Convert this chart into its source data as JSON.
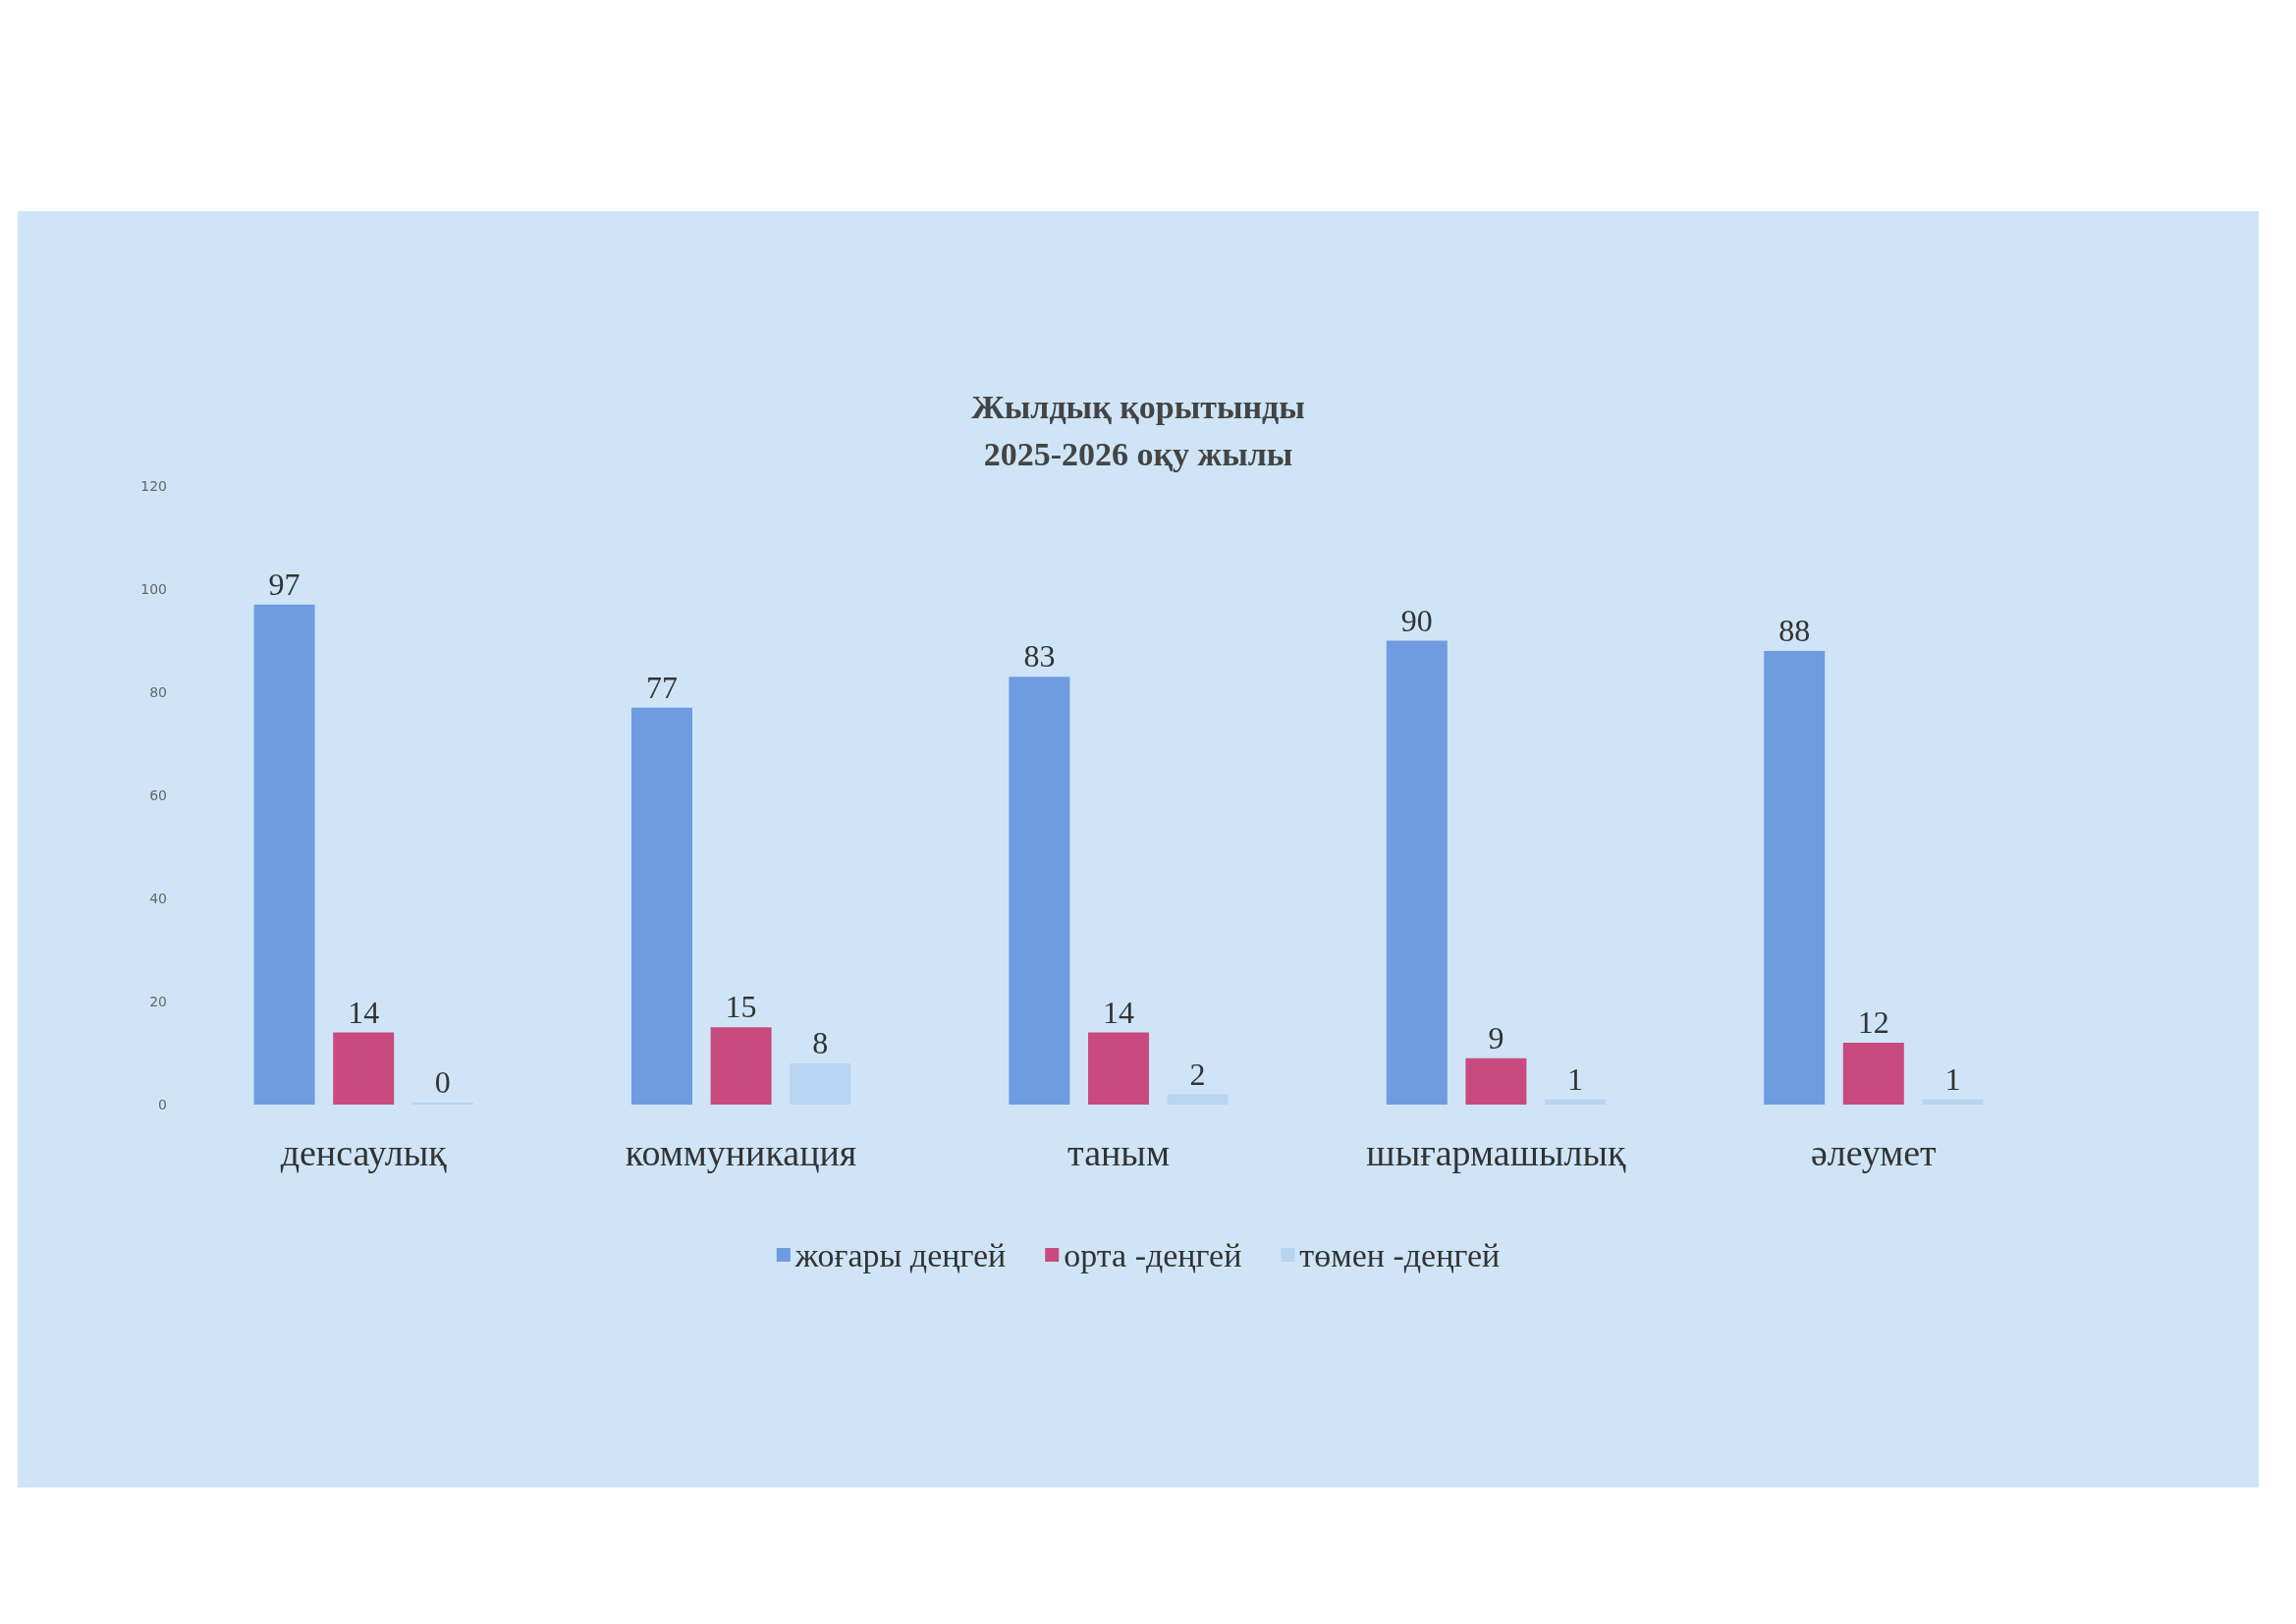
{
  "chart_data": {
    "type": "bar",
    "title": "Жылдық қорытынды\n2025-2026 оқу жылы",
    "categories": [
      "денсаулық",
      "коммуникация",
      "таным",
      "шығармашылық",
      "әлеумет"
    ],
    "series": [
      {
        "name": "жоғары деңгей",
        "color": "#6f9be0",
        "values": [
          97,
          77,
          83,
          90,
          88
        ]
      },
      {
        "name": "орта -деңгей",
        "color": "#c94a7e",
        "values": [
          14,
          15,
          14,
          9,
          12
        ]
      },
      {
        "name": "төмен -деңгей",
        "color": "#b8d4f0",
        "values": [
          0,
          8,
          2,
          1,
          1
        ]
      }
    ],
    "ylim": [
      0,
      120
    ],
    "yticks": [
      0,
      20,
      40,
      60,
      80,
      100,
      120
    ],
    "data_labels": true,
    "grid": false,
    "legend": "bottom"
  }
}
